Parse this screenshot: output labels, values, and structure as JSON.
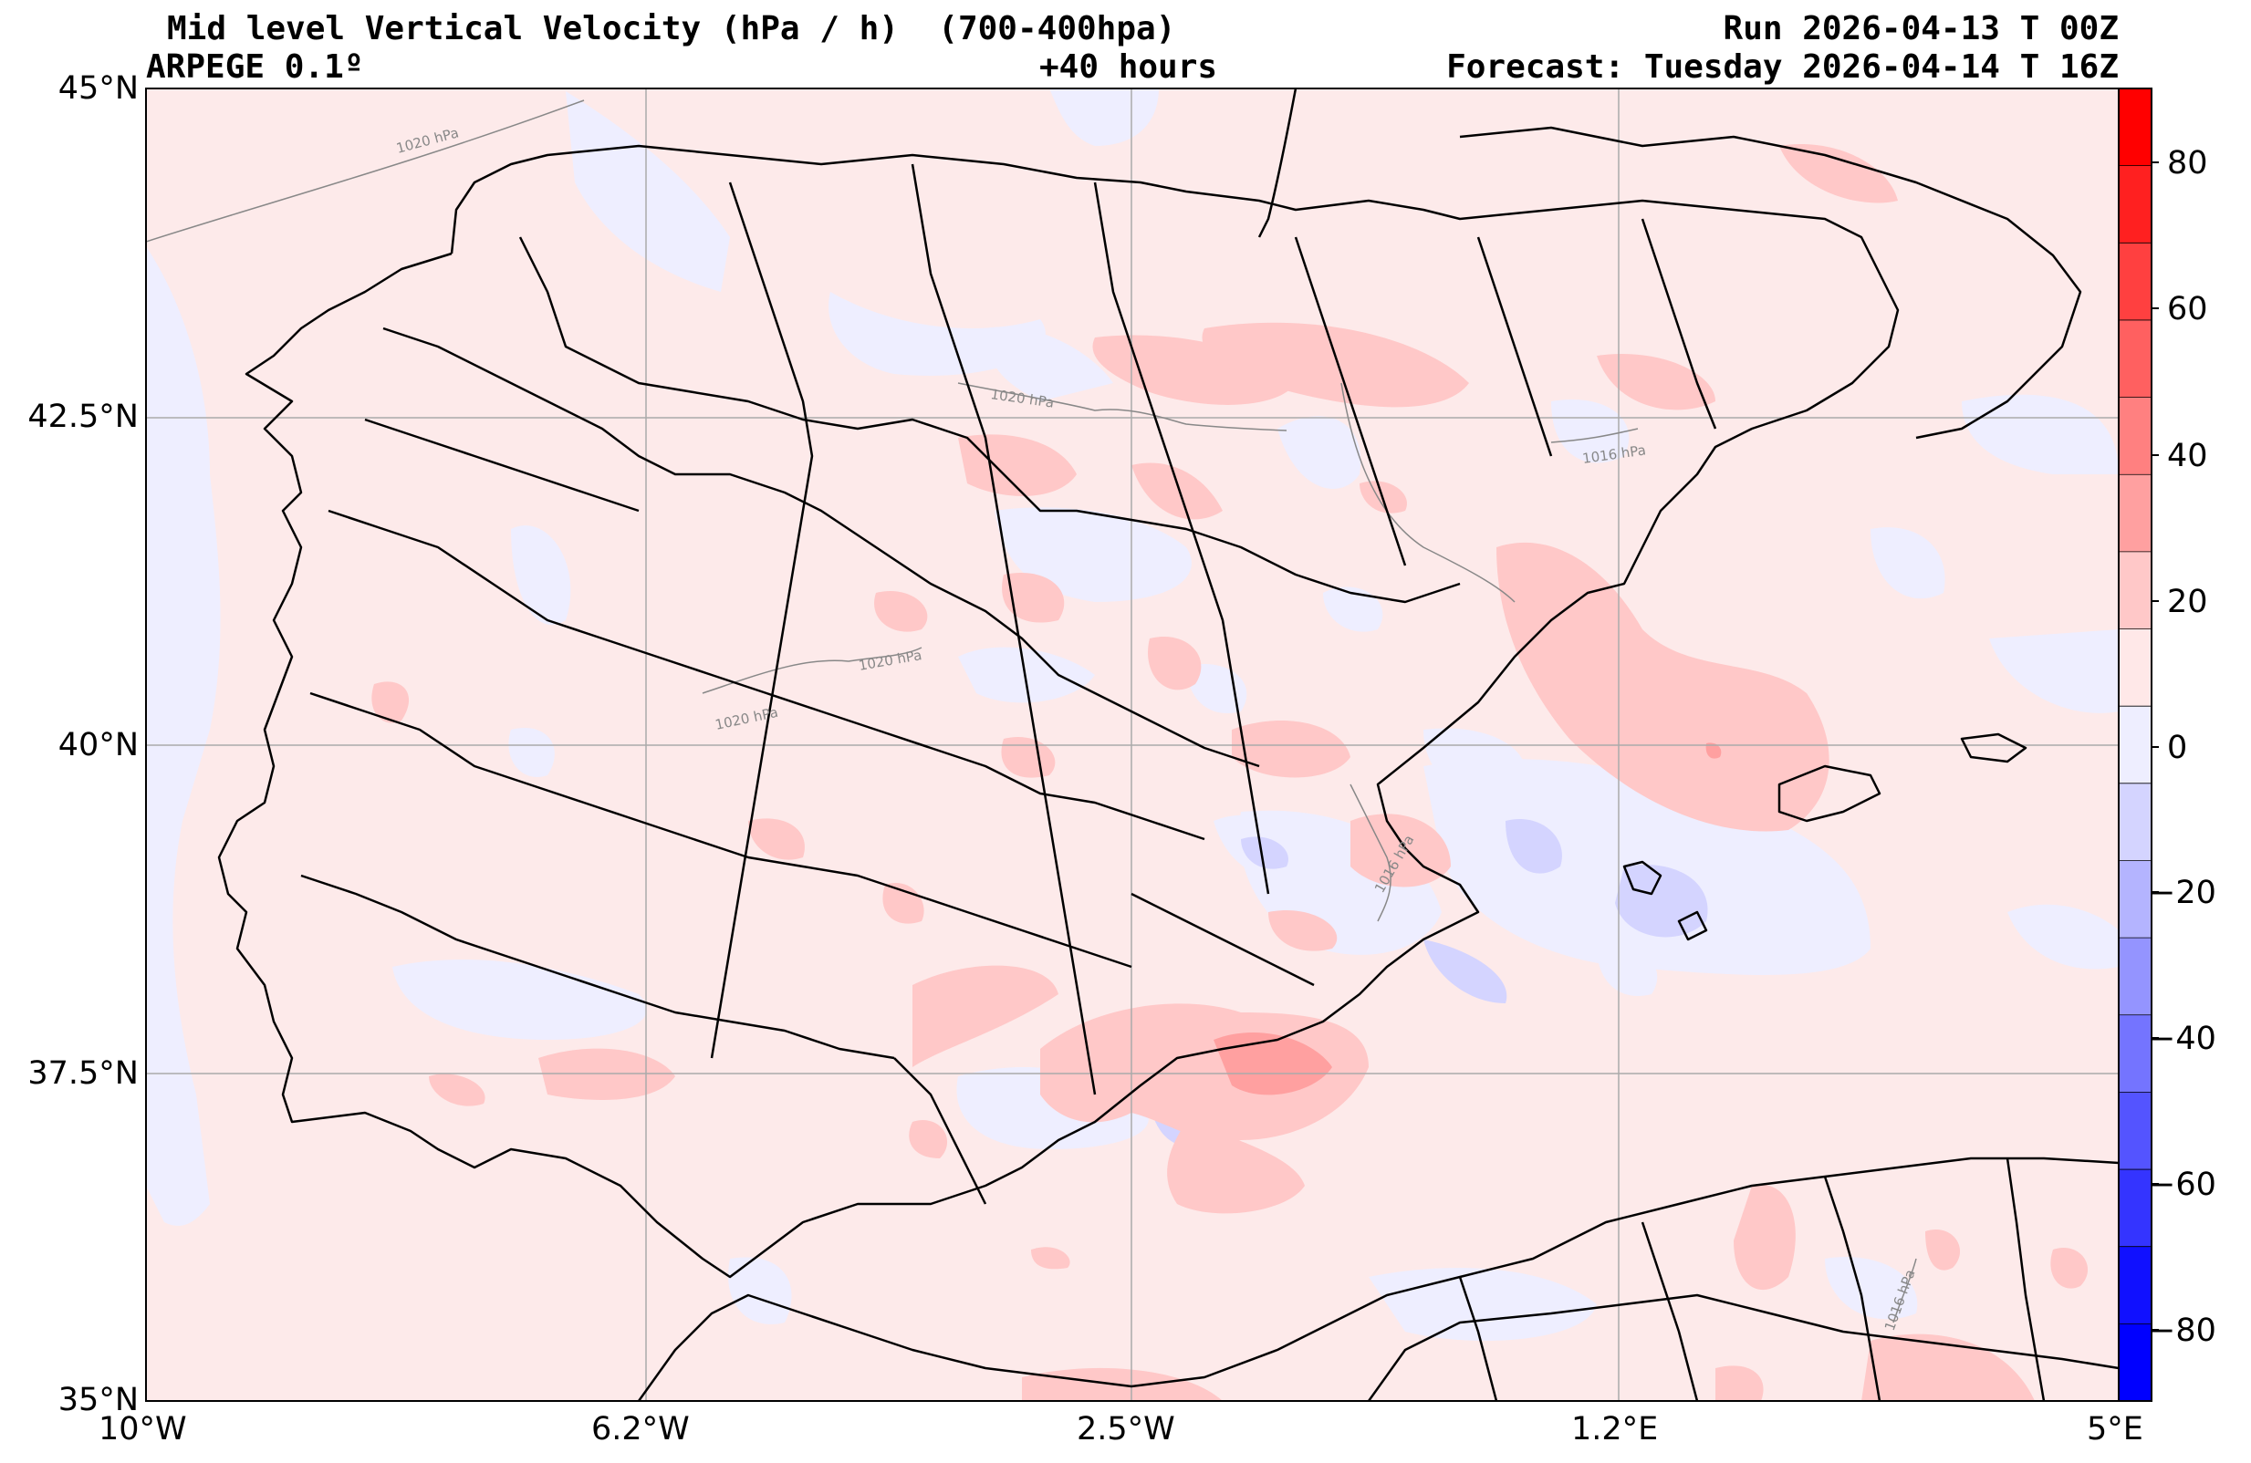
{
  "header": {
    "title": "Mid level Vertical Velocity (hPa / h)  (700-400hpa)",
    "model": "ARPEGE 0.1º",
    "lead": "+40 hours",
    "run": "Run 2026-04-13 T 00Z",
    "forecast": "Forecast: Tuesday 2026-04-14 T 16Z"
  },
  "axes": {
    "lat_labels": [
      "45°N",
      "42.5°N",
      "40°N",
      "37.5°N",
      "35°N"
    ],
    "lon_labels": [
      "10°W",
      "6.2°W",
      "2.5°W",
      "1.2°E",
      "5°E"
    ]
  },
  "isobar_labels": [
    "1020 hPa",
    "1020 hPa",
    "1020 hPa",
    "1020 hPa",
    "1016 hPa",
    "1016 hPa",
    "1016 hPa"
  ],
  "colorbar": {
    "ticks": [
      "80",
      "60",
      "40",
      "20",
      "0",
      "−20",
      "−40",
      "−60",
      "−80"
    ],
    "colors_top_to_bottom": [
      "#ff0000",
      "#ff2020",
      "#ff4040",
      "#ff6060",
      "#ff8080",
      "#ffa0a0",
      "#ffc8c8",
      "#ffe8e8",
      "#eeeeff",
      "#d4d4ff",
      "#b4b4ff",
      "#9494ff",
      "#7474ff",
      "#5454ff",
      "#3434ff",
      "#1010ff",
      "#0000ff"
    ]
  },
  "colors": {
    "positive_weak": "#fdeaea",
    "positive_mid": "#ffc8c8",
    "positive_strong": "#ffa0a0",
    "negative_weak": "#eeeeff",
    "negative_mid": "#d4d4ff",
    "border": "#000000",
    "grid": "#aaaaaa"
  }
}
